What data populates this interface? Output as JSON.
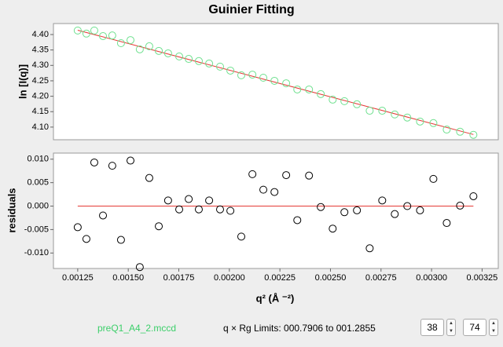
{
  "chart_data": [
    {
      "type": "scatter",
      "title": "Guinier Fitting",
      "y_label": "ln [I(q)]",
      "xlim": [
        0.00113,
        0.00333
      ],
      "ylim": [
        4.059,
        4.4356
      ],
      "yticks": [
        {
          "value": 4.1,
          "label": "4.10"
        },
        4.15,
        {
          "value": 4.2,
          "label": "4.20"
        },
        4.25,
        {
          "value": 4.3,
          "label": "4.30"
        },
        4.35,
        {
          "value": 4.4,
          "label": "4.40"
        }
      ],
      "series": [
        {
          "style": "markers",
          "color": "#6fe08f",
          "x": [
            0.00125,
            0.001293,
            0.001332,
            0.001375,
            0.001421,
            0.001464,
            0.001511,
            0.001557,
            0.001604,
            0.001651,
            0.001697,
            0.001752,
            0.001799,
            0.001849,
            0.0019,
            0.001954,
            0.002005,
            0.002059,
            0.002114,
            0.002168,
            0.002223,
            0.002281,
            0.002336,
            0.002394,
            0.002452,
            0.002511,
            0.002569,
            0.002631,
            0.002694,
            0.002756,
            0.002818,
            0.00288,
            0.002943,
            0.003009,
            0.003075,
            0.003141,
            0.003207
          ],
          "values": [
            4.413,
            4.403,
            4.413,
            4.395,
            4.397,
            4.372,
            4.382,
            4.352,
            4.362,
            4.347,
            4.339,
            4.329,
            4.321,
            4.314,
            4.306,
            4.296,
            4.283,
            4.268,
            4.27,
            4.26,
            4.25,
            4.242,
            4.222,
            4.222,
            4.207,
            4.189,
            4.184,
            4.174,
            4.153,
            4.153,
            4.141,
            4.131,
            4.118,
            4.113,
            4.092,
            4.085,
            4.075
          ]
        },
        {
          "style": "line",
          "color": "#e53935",
          "x": [
            0.00125,
            0.003207
          ],
          "values": [
            4.414,
            4.076
          ]
        }
      ]
    },
    {
      "type": "scatter",
      "y_label": "residuals",
      "x_label": "q² (Å ⁻²)",
      "xlim": [
        0.00113,
        0.00333
      ],
      "ylim": [
        -0.0133,
        0.0113
      ],
      "xticks": [
        0.00125,
        {
          "value": 0.0015,
          "label": "0.00150"
        },
        0.00175,
        {
          "value": 0.002,
          "label": "0.00200"
        },
        0.00225,
        {
          "value": 0.0025,
          "label": "0.00250"
        },
        0.00275,
        {
          "value": 0.003,
          "label": "0.00300"
        },
        0.00325
      ],
      "yticks": [
        {
          "value": -0.01,
          "label": "-0.010"
        },
        {
          "value": -0.005,
          "label": "-0.005"
        },
        {
          "value": 0,
          "label": "0.000"
        },
        {
          "value": 0.005,
          "label": "0.005"
        },
        {
          "value": 0.01,
          "label": "0.010"
        }
      ],
      "series": [
        {
          "style": "markers",
          "color": "#000000",
          "x": [
            0.00125,
            0.001293,
            0.001332,
            0.001375,
            0.001421,
            0.001464,
            0.001511,
            0.001557,
            0.001604,
            0.001651,
            0.001697,
            0.001752,
            0.001799,
            0.001849,
            0.0019,
            0.001954,
            0.002005,
            0.002059,
            0.002114,
            0.002168,
            0.002223,
            0.002281,
            0.002336,
            0.002394,
            0.002452,
            0.002511,
            0.002569,
            0.002631,
            0.002694,
            0.002756,
            0.002818,
            0.00288,
            0.002943,
            0.003009,
            0.003075,
            0.003141,
            0.003207
          ],
          "values": [
            -0.0045,
            -0.007,
            0.0093,
            -0.002,
            0.0086,
            -0.0072,
            0.0097,
            -0.013,
            0.006,
            -0.0043,
            0.0012,
            -0.0007,
            0.0015,
            -0.0007,
            0.0012,
            -0.0007,
            -0.001,
            -0.0065,
            0.0068,
            0.0035,
            0.003,
            0.0066,
            -0.003,
            0.0065,
            -0.0002,
            -0.0048,
            -0.0013,
            -0.0009,
            -0.009,
            0.0012,
            -0.0017,
            0,
            -0.0009,
            0.0058,
            -0.0036,
            0.0001,
            0.0021
          ]
        },
        {
          "style": "line",
          "color": "#e53935",
          "x": [
            0.00125,
            0.003207
          ],
          "values": [
            0,
            0
          ]
        }
      ]
    }
  ],
  "footer": {
    "filename": "preQ1_A4_2.mccd",
    "limits": "q × Rg Limits: 000.7906 to 001.2855",
    "start": "38",
    "end": "74"
  }
}
